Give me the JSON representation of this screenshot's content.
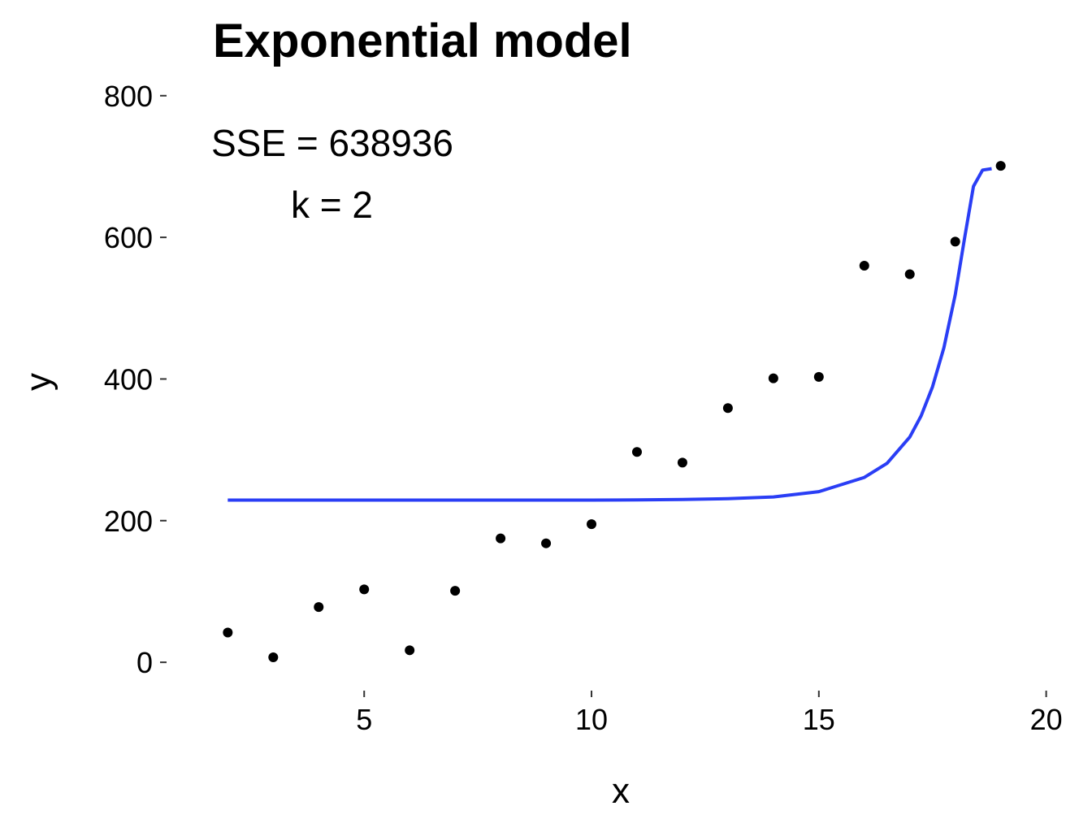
{
  "chart_data": {
    "type": "scatter",
    "title": "Exponential model",
    "xlabel": "x",
    "ylabel": "y",
    "xlim": [
      0.6,
      20.4
    ],
    "ylim": [
      -40,
      825
    ],
    "x_ticks": [
      5,
      10,
      15,
      20
    ],
    "y_ticks": [
      0,
      200,
      400,
      600,
      800
    ],
    "grid": false,
    "annotations": [
      "SSE = 638936",
      "k = 2"
    ],
    "series": [
      {
        "type": "scatter",
        "color": "#000000",
        "x": [
          2,
          3,
          4,
          5,
          6,
          7,
          8,
          9,
          10,
          11,
          12,
          13,
          14,
          15,
          16,
          17,
          18,
          19
        ],
        "y": [
          42,
          7,
          78,
          103,
          17,
          101,
          175,
          168,
          195,
          297,
          282,
          359,
          401,
          403,
          560,
          548,
          594,
          701
        ]
      },
      {
        "type": "line",
        "color": "#2a3ef5",
        "x": [
          2,
          3,
          4,
          5,
          6,
          7,
          8,
          9,
          10,
          11,
          12,
          13,
          14,
          15,
          16,
          16.5,
          17,
          17.25,
          17.5,
          17.75,
          18,
          18.2,
          18.4,
          18.6,
          18.8
        ],
        "y": [
          229,
          229,
          229,
          229,
          229,
          229,
          229,
          229,
          229,
          229.3,
          229.8,
          231,
          233.5,
          241,
          261,
          281,
          318,
          348,
          389,
          444,
          519,
          597,
          672,
          695,
          697
        ]
      }
    ]
  }
}
